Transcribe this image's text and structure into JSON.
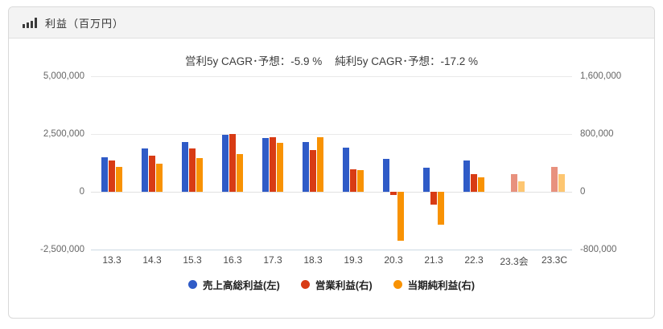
{
  "header": {
    "title": "利益（百万円）",
    "icon": "bar-chart-icon"
  },
  "chart_data": {
    "type": "bar",
    "title_parts": [
      "営利5y CAGR･予想：-5.9 %",
      "純利5y CAGR･予想：-17.2 %"
    ],
    "categories": [
      "13.3",
      "14.3",
      "15.3",
      "16.3",
      "17.3",
      "18.3",
      "19.3",
      "20.3",
      "21.3",
      "22.3",
      "23.3会",
      "23.3C"
    ],
    "forecast_from_index": 10,
    "grid": true,
    "legend_position": "bottom",
    "axes": {
      "left": {
        "ticks": [
          "5,000,000",
          "2,500,000",
          "0",
          "-2,500,000"
        ],
        "ylim": [
          -2500000,
          5000000
        ]
      },
      "right": {
        "ticks": [
          "1,600,000",
          "800,000",
          "0",
          "-800,000"
        ],
        "ylim": [
          -800000,
          1600000
        ]
      }
    },
    "series": [
      {
        "key": "gross-profit",
        "name": "売上高総利益(左)",
        "axis": "left",
        "color": "#2f5bc7",
        "light_color": "#96abdf",
        "values": [
          1480000,
          1860000,
          2160000,
          2450000,
          2330000,
          2170000,
          1900000,
          1430000,
          1050000,
          1370000,
          null,
          null
        ]
      },
      {
        "key": "operating-profit",
        "name": "営業利益(右)",
        "axis": "right",
        "color": "#d83b14",
        "light_color": "#e8917e",
        "values": [
          435000,
          505000,
          600000,
          800000,
          760000,
          580000,
          315000,
          -45000,
          -180000,
          245000,
          245000,
          350000
        ]
      },
      {
        "key": "net-profit",
        "name": "当期純利益(右)",
        "axis": "right",
        "color": "#f89203",
        "light_color": "#fdc671",
        "values": [
          350000,
          390000,
          465000,
          520000,
          680000,
          760000,
          305000,
          -680000,
          -460000,
          200000,
          140000,
          250000
        ]
      }
    ]
  }
}
